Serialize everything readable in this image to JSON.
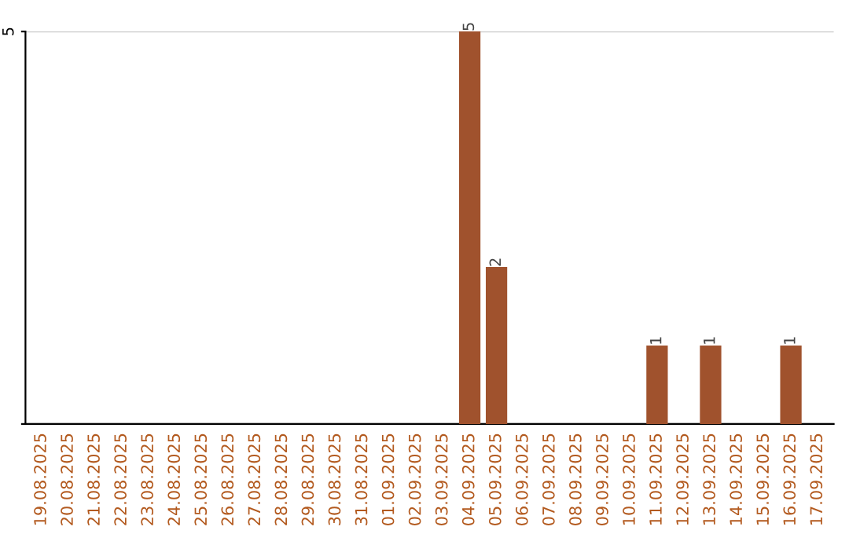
{
  "chart_data": {
    "type": "bar",
    "categories": [
      "19.08.2025",
      "20.08.2025",
      "21.08.2025",
      "22.08.2025",
      "23.08.2025",
      "24.08.2025",
      "25.08.2025",
      "26.08.2025",
      "27.08.2025",
      "28.08.2025",
      "29.08.2025",
      "30.08.2025",
      "31.08.2025",
      "01.09.2025",
      "02.09.2025",
      "03.09.2025",
      "04.09.2025",
      "05.09.2025",
      "06.09.2025",
      "07.09.2025",
      "08.09.2025",
      "09.09.2025",
      "10.09.2025",
      "11.09.2025",
      "12.09.2025",
      "13.09.2025",
      "14.09.2025",
      "15.09.2025",
      "16.09.2025",
      "17.09.2025"
    ],
    "values": [
      null,
      null,
      null,
      null,
      null,
      null,
      null,
      null,
      null,
      null,
      null,
      null,
      null,
      null,
      null,
      null,
      5,
      2,
      null,
      null,
      null,
      null,
      null,
      1,
      null,
      1,
      null,
      null,
      1,
      null
    ],
    "value_labels": [
      null,
      null,
      null,
      null,
      null,
      null,
      null,
      null,
      null,
      null,
      null,
      null,
      null,
      null,
      null,
      null,
      "5",
      "2",
      null,
      null,
      null,
      null,
      null,
      "1",
      null,
      "1",
      null,
      null,
      "1",
      null
    ],
    "color": "#a0522d",
    "ylim": [
      0,
      5
    ],
    "yticks": [
      {
        "value": 0,
        "label": null
      },
      5
    ],
    "grid": "y",
    "legend": false
  }
}
